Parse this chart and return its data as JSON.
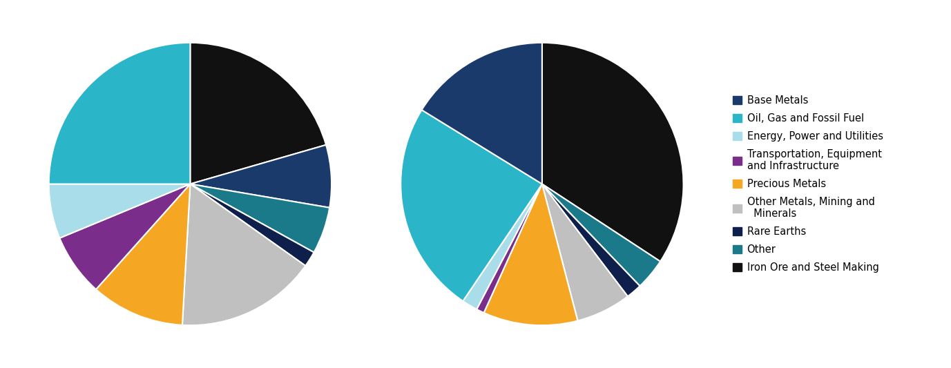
{
  "legend_labels": [
    "Base Metals",
    "Oil, Gas and Fossil Fuel",
    "Energy, Power and Utilities",
    "Transportation, Equipment\nand Infrastructure",
    "Precious Metals",
    "Other Metals, Mining and\n  Minerals",
    "Rare Earths",
    "Other",
    "Iron Ore and Steel Making"
  ],
  "colors": {
    "Base Metals": "#1a3a6b",
    "Oil, Gas and Fossil Fuel": "#2ab5c8",
    "Energy, Power and Utilities": "#a8dde9",
    "Transportation, Equipment\nand Infrastructure": "#7b2d8b",
    "Precious Metals": "#f5a623",
    "Other Metals, Mining and\n  Minerals": "#c0c0c0",
    "Rare Earths": "#0d1f4a",
    "Other": "#1a7a8a",
    "Iron Ore and Steel Making": "#111111"
  },
  "pie1_segments": [
    {
      "label": "Iron Ore and Steel Making",
      "value": 23
    },
    {
      "label": "Base Metals",
      "value": 8
    },
    {
      "label": "Other",
      "value": 6
    },
    {
      "label": "Rare Earths",
      "value": 2
    },
    {
      "label": "Other Metals, Mining and\n  Minerals",
      "value": 18
    },
    {
      "label": "Precious Metals",
      "value": 12
    },
    {
      "label": "Transportation, Equipment\nand Infrastructure",
      "value": 8
    },
    {
      "label": "Energy, Power and Utilities",
      "value": 7
    },
    {
      "label": "Oil, Gas and Fossil Fuel",
      "value": 28
    }
  ],
  "pie2_segments": [
    {
      "label": "Iron Ore and Steel Making",
      "value": 38
    },
    {
      "label": "Other",
      "value": 4
    },
    {
      "label": "Rare Earths",
      "value": 2
    },
    {
      "label": "Other Metals, Mining and\n  Minerals",
      "value": 7
    },
    {
      "label": "Precious Metals",
      "value": 12
    },
    {
      "label": "Transportation, Equipment\nand Infrastructure",
      "value": 1
    },
    {
      "label": "Energy, Power and Utilities",
      "value": 2
    },
    {
      "label": "Oil, Gas and Fossil Fuel",
      "value": 27
    },
    {
      "label": "Base Metals",
      "value": 18
    }
  ],
  "pie1_startangle": 90,
  "pie2_startangle": 90,
  "background_color": "#ffffff"
}
